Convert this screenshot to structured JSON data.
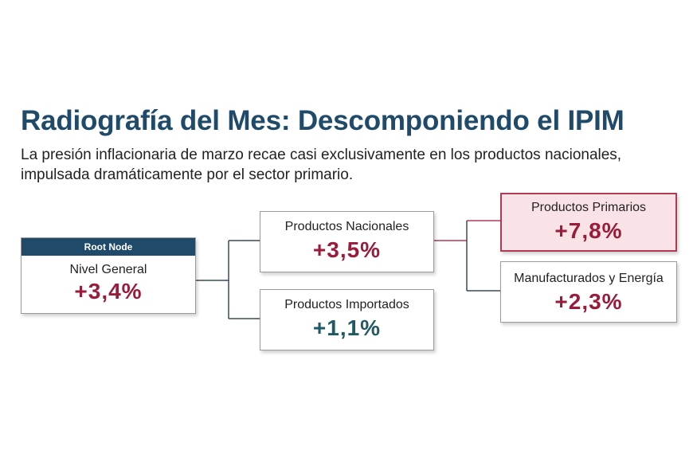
{
  "header": {
    "title": "Radiografía del Mes: Descomponiendo el IPIM",
    "subtitle": "La presión inflacionaria de marzo recae casi exclusivamente en los productos nacionales, impulsada dramáticamente por el sector primario."
  },
  "tree": {
    "root": {
      "tag": "Root Node",
      "label": "Nivel General",
      "value": "+3,4%"
    },
    "nacionales": {
      "label": "Productos Nacionales",
      "value": "+3,5%"
    },
    "importados": {
      "label": "Productos Importados",
      "value": "+1,1%"
    },
    "primarios": {
      "label": "Productos Primarios",
      "value": "+7,8%"
    },
    "manufacturados": {
      "label": "Manufacturados y Energía",
      "value": "+2,3%"
    }
  },
  "colors": {
    "title": "#1f4a6a",
    "increase_high": "#9b1b3b",
    "increase_low": "#1f5a66",
    "highlight_fill": "#f9e3e6",
    "highlight_border": "#b23a54"
  }
}
